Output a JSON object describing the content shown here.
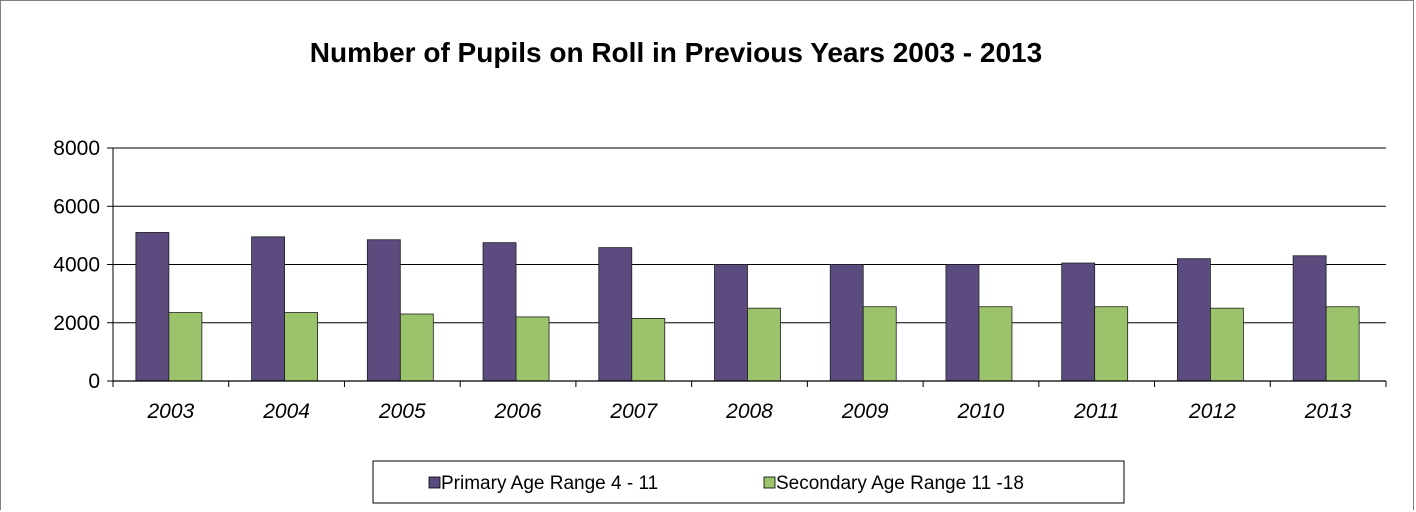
{
  "chart_data": {
    "type": "bar",
    "title": "Number of Pupils on Roll in Previous Years 2003 - 2013",
    "categories": [
      "2003",
      "2004",
      "2005",
      "2006",
      "2007",
      "2008",
      "2009",
      "2010",
      "2011",
      "2012",
      "2013"
    ],
    "series": [
      {
        "name": "Primary Age Range 4 - 11",
        "color": "#5b4b7f",
        "values": [
          5100,
          4950,
          4850,
          4750,
          4580,
          4000,
          4000,
          4000,
          4050,
          4200,
          4300
        ]
      },
      {
        "name": "Secondary Age Range 11 -18",
        "color": "#9bc36b",
        "values": [
          2350,
          2350,
          2300,
          2200,
          2150,
          2500,
          2550,
          2550,
          2550,
          2500,
          2550
        ]
      }
    ],
    "ylim": [
      0,
      8000
    ],
    "yticks": [
      0,
      2000,
      4000,
      6000,
      8000
    ],
    "grid": true,
    "legend": "bottom"
  }
}
